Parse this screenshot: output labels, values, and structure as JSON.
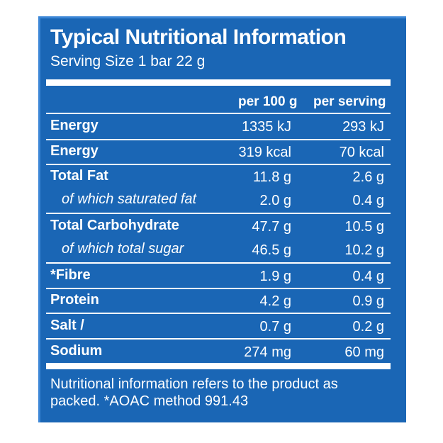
{
  "panel": {
    "title": "Typical Nutritional Information",
    "serving": "Serving Size 1 bar 22 g",
    "columns": [
      "per 100 g",
      "per serving"
    ],
    "rows": [
      {
        "label": "Energy",
        "per100": "1335 kJ",
        "perServing": "293 kJ"
      },
      {
        "label": "Energy",
        "per100": "319 kcal",
        "perServing": "70 kcal"
      },
      {
        "label": "Total Fat",
        "per100": "11.8 g",
        "perServing": "2.6 g"
      },
      {
        "label": "of which saturated fat",
        "per100": "2.0 g",
        "perServing": "0.4 g"
      },
      {
        "label": "Total Carbohydrate",
        "per100": "47.7 g",
        "perServing": "10.5 g"
      },
      {
        "label": "of which total sugar",
        "per100": "46.5 g",
        "perServing": "10.2 g"
      },
      {
        "label": "*Fibre",
        "per100": "1.9 g",
        "perServing": "0.4 g"
      },
      {
        "label": "Protein",
        "per100": "4.2 g",
        "perServing": "0.9 g"
      },
      {
        "label": "Salt /",
        "per100": "0.7 g",
        "perServing": "0.2 g"
      },
      {
        "label": "Sodium",
        "per100": "274 mg",
        "perServing": "60 mg"
      }
    ],
    "footer": "Nutritional information refers to the product as packed. *AOAC method 991.43"
  },
  "colors": {
    "background": "#1a66b5",
    "text": "#ffffff"
  }
}
